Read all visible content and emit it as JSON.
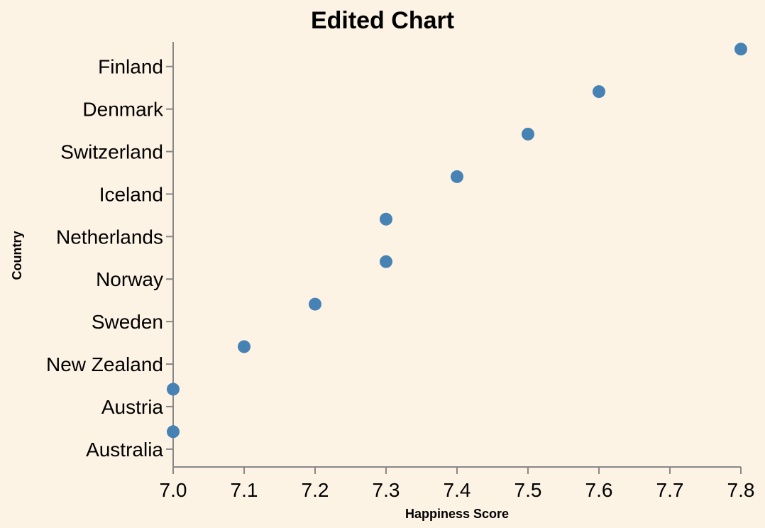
{
  "chart_data": {
    "type": "scatter",
    "title": "Edited Chart",
    "xlabel": "Happiness Score",
    "ylabel": "Country",
    "xlim": [
      7.0,
      7.8
    ],
    "x_ticks": [
      "7.0",
      "7.1",
      "7.2",
      "7.3",
      "7.4",
      "7.5",
      "7.6",
      "7.7",
      "7.8"
    ],
    "categories": [
      "Finland",
      "Denmark",
      "Switzerland",
      "Iceland",
      "Netherlands",
      "Norway",
      "Sweden",
      "New Zealand",
      "Austria",
      "Australia"
    ],
    "values": [
      7.8,
      7.6,
      7.5,
      7.4,
      7.3,
      7.3,
      7.2,
      7.1,
      7.0,
      7.0
    ],
    "point_color": "#4682b4",
    "grid": false
  }
}
